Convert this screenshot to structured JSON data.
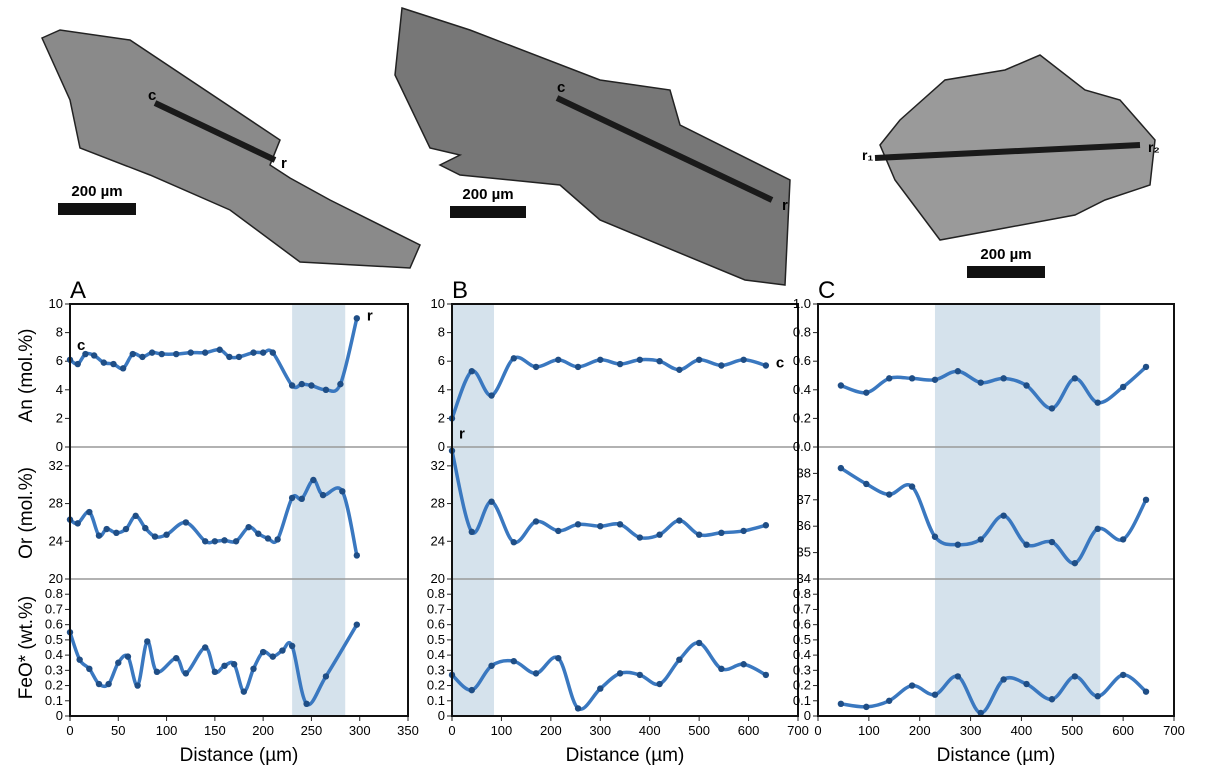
{
  "images": [
    {
      "scale_label": "200 µm",
      "labels": [
        "c",
        "r"
      ]
    },
    {
      "scale_label": "200 µm",
      "labels": [
        "c",
        "r"
      ]
    },
    {
      "scale_label": "200 µm",
      "labels": [
        "r₁",
        "r₂"
      ]
    }
  ],
  "chart_data": [
    {
      "type": "line",
      "panel": "A",
      "xlabel": "Distance (µm)",
      "xlim": [
        0,
        350
      ],
      "xticks": [
        0,
        50,
        100,
        150,
        200,
        250,
        300,
        350
      ],
      "shade": [
        230,
        285
      ],
      "color": "#3a78c0",
      "subplots": [
        {
          "ylabel": "An (mol.%)",
          "ylim": [
            0,
            10
          ],
          "yticks": [
            0,
            2,
            4,
            6,
            8,
            10
          ],
          "x": [
            0,
            8,
            16,
            25,
            35,
            45,
            55,
            65,
            75,
            85,
            95,
            110,
            125,
            140,
            155,
            165,
            175,
            190,
            200,
            210,
            230,
            240,
            250,
            265,
            280,
            297
          ],
          "values": [
            6.1,
            5.8,
            6.5,
            6.4,
            5.9,
            5.8,
            5.5,
            6.5,
            6.3,
            6.6,
            6.5,
            6.5,
            6.6,
            6.6,
            6.8,
            6.3,
            6.3,
            6.6,
            6.6,
            6.6,
            4.3,
            4.4,
            4.3,
            4.0,
            4.4,
            9.0
          ],
          "annotations": [
            "c",
            "r"
          ]
        },
        {
          "ylabel": "Or (mol.%)",
          "ylim": [
            20,
            34
          ],
          "yticks": [
            20,
            24,
            28,
            32
          ],
          "x": [
            0,
            8,
            20,
            30,
            38,
            48,
            58,
            68,
            78,
            88,
            100,
            120,
            140,
            150,
            160,
            172,
            185,
            195,
            205,
            215,
            230,
            240,
            252,
            262,
            282,
            297
          ],
          "values": [
            26.3,
            25.9,
            27.1,
            24.6,
            25.3,
            24.9,
            25.3,
            26.7,
            25.4,
            24.5,
            24.7,
            26,
            24,
            24,
            24.1,
            24,
            25.5,
            24.8,
            24.3,
            24.2,
            28.6,
            28.5,
            30.5,
            28.9,
            29.3,
            22.5
          ]
        },
        {
          "ylabel": "FeO* (wt.%)",
          "ylim": [
            0,
            0.9
          ],
          "yticks": [
            0,
            0.1,
            0.2,
            0.3,
            0.4,
            0.5,
            0.6,
            0.7,
            0.8
          ],
          "x": [
            0,
            10,
            20,
            30,
            40,
            50,
            60,
            70,
            80,
            90,
            110,
            120,
            140,
            150,
            160,
            170,
            180,
            190,
            200,
            210,
            220,
            230,
            245,
            265,
            297
          ],
          "values": [
            0.55,
            0.37,
            0.31,
            0.21,
            0.21,
            0.35,
            0.39,
            0.2,
            0.49,
            0.29,
            0.38,
            0.28,
            0.45,
            0.29,
            0.33,
            0.34,
            0.16,
            0.31,
            0.42,
            0.39,
            0.43,
            0.46,
            0.08,
            0.26,
            0.6
          ]
        }
      ]
    },
    {
      "type": "line",
      "panel": "B",
      "xlabel": "Distance (µm)",
      "xlim": [
        0,
        700
      ],
      "xticks": [
        0,
        100,
        200,
        300,
        400,
        500,
        600,
        700
      ],
      "shade": [
        0,
        85
      ],
      "color": "#3a78c0",
      "subplots": [
        {
          "ylim": [
            0,
            10
          ],
          "yticks": [
            0,
            2,
            4,
            6,
            8,
            10
          ],
          "x": [
            0,
            40,
            80,
            125,
            170,
            215,
            255,
            300,
            340,
            380,
            420,
            460,
            500,
            545,
            590,
            635
          ],
          "values": [
            2,
            5.3,
            3.6,
            6.2,
            5.6,
            6.1,
            5.6,
            6.1,
            5.8,
            6.1,
            6.0,
            5.4,
            6.1,
            5.7,
            6.1,
            5.7
          ],
          "annotations": [
            "r",
            "c"
          ]
        },
        {
          "ylim": [
            20,
            34
          ],
          "yticks": [
            20,
            24,
            28,
            32
          ],
          "x": [
            0,
            40,
            80,
            125,
            170,
            215,
            255,
            300,
            340,
            380,
            420,
            460,
            500,
            545,
            590,
            635
          ],
          "values": [
            33.6,
            25,
            28.2,
            23.9,
            26.1,
            25.1,
            25.8,
            25.6,
            25.8,
            24.4,
            24.7,
            26.2,
            24.7,
            24.9,
            25.1,
            25.7
          ]
        },
        {
          "ylim": [
            0,
            0.9
          ],
          "yticks": [
            0,
            0.1,
            0.2,
            0.3,
            0.4,
            0.5,
            0.6,
            0.7,
            0.8
          ],
          "x": [
            0,
            40,
            80,
            125,
            170,
            215,
            255,
            300,
            340,
            380,
            420,
            460,
            500,
            545,
            590,
            635
          ],
          "values": [
            0.27,
            0.17,
            0.33,
            0.36,
            0.28,
            0.38,
            0.05,
            0.18,
            0.28,
            0.27,
            0.21,
            0.37,
            0.48,
            0.31,
            0.34,
            0.27
          ]
        }
      ]
    },
    {
      "type": "line",
      "panel": "C",
      "xlabel": "Distance (µm)",
      "xlim": [
        0,
        700
      ],
      "xticks": [
        0,
        100,
        200,
        300,
        400,
        500,
        600,
        700
      ],
      "shade": [
        230,
        555
      ],
      "color": "#3a78c0",
      "subplots": [
        {
          "ylim": [
            0,
            1
          ],
          "yticks": [
            {
              "value": 0,
              "label": "0.0"
            },
            0.2,
            0.4,
            0.6,
            0.8,
            {
              "value": 1,
              "label": "1.0"
            }
          ],
          "x": [
            45,
            95,
            140,
            185,
            230,
            275,
            320,
            365,
            410,
            460,
            505,
            550,
            600,
            645
          ],
          "values": [
            0.43,
            0.38,
            0.48,
            0.48,
            0.47,
            0.53,
            0.45,
            0.48,
            0.43,
            0.27,
            0.48,
            0.31,
            0.42,
            0.56
          ]
        },
        {
          "ylim": [
            34,
            39
          ],
          "yticks": [
            34,
            35,
            36,
            37,
            38
          ],
          "x": [
            45,
            95,
            140,
            185,
            230,
            275,
            320,
            365,
            410,
            460,
            505,
            550,
            600,
            645
          ],
          "values": [
            38.2,
            37.6,
            37.2,
            37.5,
            35.6,
            35.3,
            35.5,
            36.4,
            35.3,
            35.4,
            34.6,
            35.9,
            35.5,
            37
          ]
        },
        {
          "ylim": [
            0,
            0.9
          ],
          "yticks": [
            0,
            0.1,
            0.2,
            0.3,
            0.4,
            0.5,
            0.6,
            0.7,
            0.8
          ],
          "x": [
            45,
            95,
            140,
            185,
            230,
            275,
            320,
            365,
            410,
            460,
            505,
            550,
            600,
            645
          ],
          "values": [
            0.08,
            0.06,
            0.1,
            0.2,
            0.14,
            0.26,
            0.02,
            0.24,
            0.21,
            0.11,
            0.26,
            0.13,
            0.27,
            0.16
          ]
        }
      ]
    }
  ]
}
